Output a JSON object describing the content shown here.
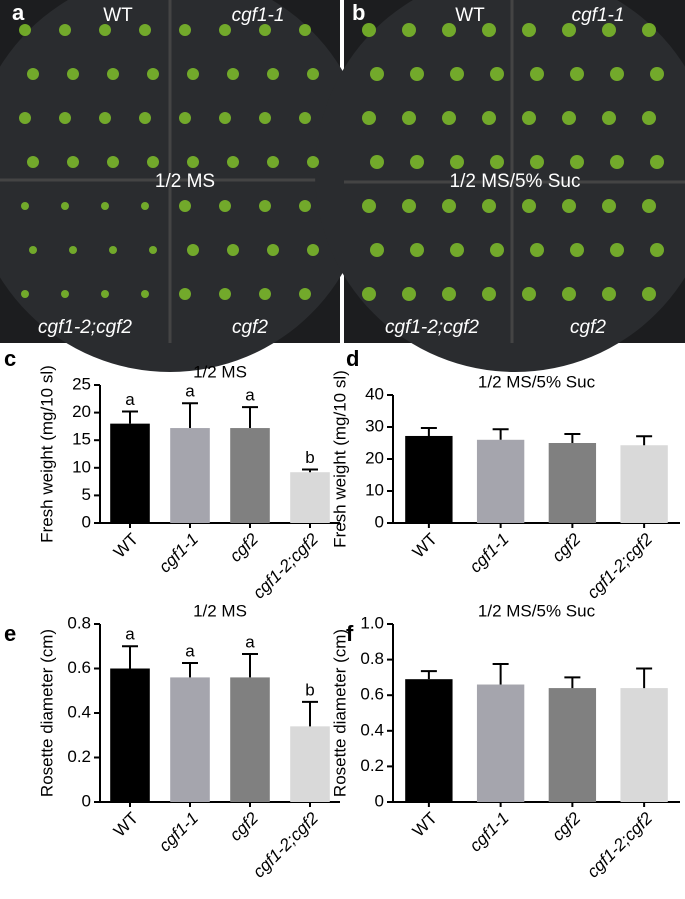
{
  "photos": [
    {
      "panel": "a",
      "labels": [
        "WT",
        "cgf1-1",
        "1/2 MS",
        "cgf1-2;cgf2",
        "cgf2"
      ]
    },
    {
      "panel": "b",
      "labels": [
        "WT",
        "cgf1-1",
        "1/2 MS/5% Suc",
        "cgf1-2;cgf2",
        "cgf2"
      ]
    }
  ],
  "chart_data": [
    {
      "type": "bar",
      "panel": "c",
      "title": "1/2 MS",
      "y_label": "Fresh weight (mg/10 sl)",
      "categories": [
        "WT",
        "cgf1-1",
        "cgf2",
        "cgf1-2;cgf2"
      ],
      "values": [
        18,
        17.2,
        17.2,
        9.2
      ],
      "errors": [
        2.2,
        4.5,
        3.8,
        0.5
      ],
      "letters": [
        "a",
        "a",
        "a",
        "b"
      ],
      "colors": [
        "#000000",
        "#a5a5ad",
        "#808080",
        "#d9d9d9"
      ],
      "ylim": [
        0,
        25
      ],
      "yticks": [
        0,
        5,
        10,
        15,
        20,
        25
      ]
    },
    {
      "type": "bar",
      "panel": "d",
      "title": "1/2 MS/5% Suc",
      "y_label": "Fresh weight (mg/10 sl)",
      "categories": [
        "WT",
        "cgf1-1",
        "cgf2",
        "cgf1-2;cgf2"
      ],
      "values": [
        27.2,
        26,
        25,
        24.3
      ],
      "errors": [
        2.5,
        3.3,
        2.8,
        2.8
      ],
      "colors": [
        "#000000",
        "#a5a5ad",
        "#808080",
        "#d9d9d9"
      ],
      "ylim": [
        0,
        40
      ],
      "yticks": [
        0,
        10,
        20,
        30,
        40
      ]
    },
    {
      "type": "bar",
      "panel": "e",
      "title": "1/2 MS",
      "y_label": "Rosette diameter (cm)",
      "categories": [
        "WT",
        "cgf1-1",
        "cgf2",
        "cgf1-2;cgf2"
      ],
      "values": [
        0.6,
        0.56,
        0.56,
        0.34
      ],
      "errors": [
        0.1,
        0.065,
        0.105,
        0.11
      ],
      "letters": [
        "a",
        "a",
        "a",
        "b"
      ],
      "colors": [
        "#000000",
        "#a5a5ad",
        "#808080",
        "#d9d9d9"
      ],
      "ylim": [
        0,
        0.8
      ],
      "yticks": [
        0,
        0.2,
        0.4,
        0.6,
        0.8
      ]
    },
    {
      "type": "bar",
      "panel": "f",
      "title": "1/2 MS/5% Suc",
      "y_label": "Rosette diameter (cm)",
      "categories": [
        "WT",
        "cgf1-1",
        "cgf2",
        "cgf1-2;cgf2"
      ],
      "values": [
        0.69,
        0.66,
        0.64,
        0.64
      ],
      "errors": [
        0.045,
        0.115,
        0.06,
        0.11
      ],
      "colors": [
        "#000000",
        "#a5a5ad",
        "#808080",
        "#d9d9d9"
      ],
      "ylim": [
        0,
        1
      ],
      "yticks": [
        0,
        0.2,
        0.4,
        0.6,
        0.8,
        {
          "value": 1,
          "label": "1.0"
        }
      ]
    }
  ]
}
